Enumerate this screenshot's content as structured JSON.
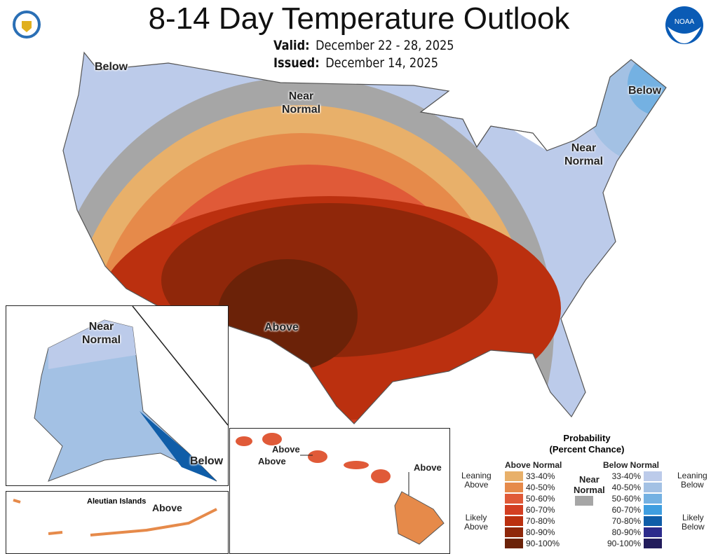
{
  "header": {
    "title": "8-14 Day Temperature Outlook",
    "valid_label": "Valid:",
    "valid_value": "December 22 - 28, 2025",
    "issued_label": "Issued:",
    "issued_value": "December 14, 2025",
    "left_logo": "US Department of Commerce seal",
    "right_logo": "NOAA"
  },
  "map_labels": {
    "nw": "Below",
    "north": "Near Normal",
    "ne": "Below",
    "ne_near": "Near Normal",
    "south": "Above"
  },
  "alaska": {
    "near": "Near Normal",
    "below": "Below",
    "aleutian": "Aleutian Islands",
    "aleutian_above": "Above"
  },
  "hawaii": {
    "above1": "Above",
    "above2": "Above",
    "above3": "Above"
  },
  "legend": {
    "title1": "Probability",
    "title2": "(Percent Chance)",
    "above_head": "Above Normal",
    "below_head": "Below Normal",
    "near1": "Near",
    "near2": "Normal",
    "near_color": "#a6a6a6",
    "leaning_above": [
      "Leaning",
      "Above"
    ],
    "likely_above": [
      "Likely",
      "Above"
    ],
    "leaning_below": [
      "Leaning",
      "Below"
    ],
    "likely_below": [
      "Likely",
      "Below"
    ],
    "above": [
      {
        "range": "33-40%",
        "color": "#e8b06a"
      },
      {
        "range": "40-50%",
        "color": "#e68a4a"
      },
      {
        "range": "50-60%",
        "color": "#e05a38"
      },
      {
        "range": "60-70%",
        "color": "#d33f22"
      },
      {
        "range": "70-80%",
        "color": "#bb300f"
      },
      {
        "range": "80-90%",
        "color": "#8f270a"
      },
      {
        "range": "90-100%",
        "color": "#6b2208"
      }
    ],
    "below": [
      {
        "range": "33-40%",
        "color": "#bccbea"
      },
      {
        "range": "40-50%",
        "color": "#a3c1e4"
      },
      {
        "range": "50-60%",
        "color": "#74b1e2"
      },
      {
        "range": "60-70%",
        "color": "#3f9ee0"
      },
      {
        "range": "70-80%",
        "color": "#0f5da8"
      },
      {
        "range": "80-90%",
        "color": "#2c2b8c"
      },
      {
        "range": "90-100%",
        "color": "#221c5c"
      }
    ]
  }
}
